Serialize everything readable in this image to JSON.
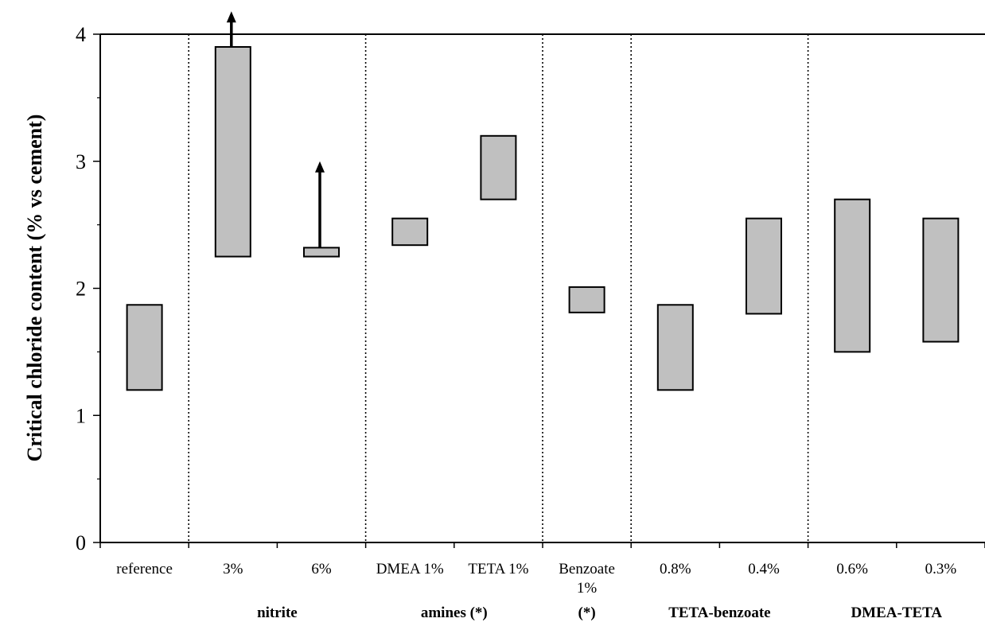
{
  "chart_data": {
    "type": "bar",
    "subtype": "floating-range",
    "ylabel": "Critical chloride content (% vs cement)",
    "ylim": [
      0,
      4
    ],
    "yticks": [
      "0",
      "1",
      "2",
      "3",
      "4"
    ],
    "grid": false,
    "legend": "none",
    "bar_color": "#c0c0c0",
    "categories": [
      {
        "label": [
          "reference"
        ],
        "low": 1.2,
        "high": 1.87
      },
      {
        "label": [
          "3%"
        ],
        "low": 2.25,
        "high": 3.9,
        "arrow_to": 4.18
      },
      {
        "label": [
          "6%"
        ],
        "low": 2.25,
        "high": 2.32,
        "arrow_to": 3.0
      },
      {
        "label": [
          "DMEA 1%"
        ],
        "low": 2.34,
        "high": 2.55
      },
      {
        "label": [
          "TETA 1%"
        ],
        "low": 2.7,
        "high": 3.2
      },
      {
        "label": [
          "Benzoate",
          "1%"
        ],
        "low": 1.81,
        "high": 2.01
      },
      {
        "label": [
          "0.8%"
        ],
        "low": 1.2,
        "high": 1.87
      },
      {
        "label": [
          "0.4%"
        ],
        "low": 1.8,
        "high": 2.55
      },
      {
        "label": [
          "0.6%"
        ],
        "low": 1.5,
        "high": 2.7
      },
      {
        "label": [
          "0.3%"
        ],
        "low": 1.58,
        "high": 2.55
      }
    ],
    "groups": [
      {
        "label": "",
        "span": [
          0,
          0
        ]
      },
      {
        "label": "nitrite",
        "span": [
          1,
          2
        ]
      },
      {
        "label": "amines (*)",
        "span": [
          3,
          4
        ]
      },
      {
        "label": "(*)",
        "span": [
          5,
          5
        ]
      },
      {
        "label": "TETA-benzoate",
        "span": [
          6,
          7
        ]
      },
      {
        "label": "DMEA-TETA",
        "span": [
          8,
          9
        ]
      }
    ]
  }
}
